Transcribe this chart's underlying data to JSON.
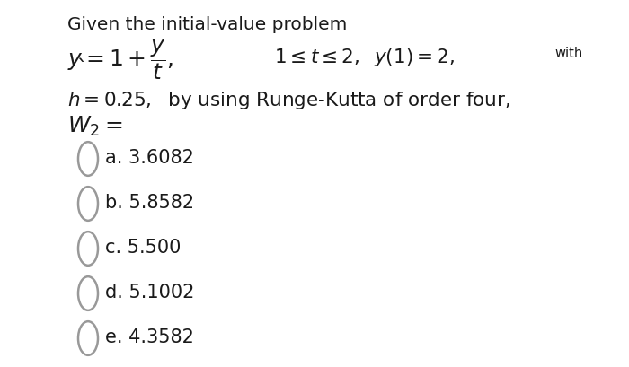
{
  "background_color": "#ffffff",
  "font_color": "#1a1a1a",
  "circle_edge_color": "#999999",
  "title": "Given the initial-value problem",
  "title_fontsize": 14.5,
  "eq_fontsize": 18,
  "body_fontsize": 14.5,
  "option_fontsize": 15,
  "with_fontsize": 10.5,
  "options": [
    {
      "label": "a.",
      "value": "3.6082"
    },
    {
      "label": "b.",
      "value": "5.8582"
    },
    {
      "label": "c.",
      "value": "5.500"
    },
    {
      "label": "d.",
      "value": "5.1002"
    },
    {
      "label": "e.",
      "value": "4.3582"
    }
  ]
}
